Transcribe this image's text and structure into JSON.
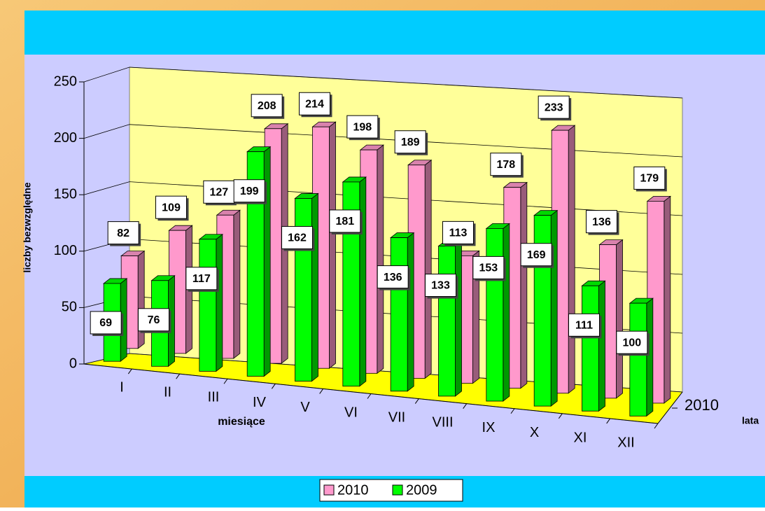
{
  "chart_data": {
    "type": "bar3d",
    "categories": [
      "I",
      "II",
      "III",
      "IV",
      "V",
      "VI",
      "VII",
      "VIII",
      "IX",
      "X",
      "XI",
      "XII"
    ],
    "series": [
      {
        "name": "2010",
        "color": "#ff99cc",
        "values": [
          82,
          109,
          127,
          208,
          214,
          198,
          189,
          113,
          178,
          233,
          136,
          179
        ]
      },
      {
        "name": "2009",
        "color": "#00ff00",
        "values": [
          69,
          76,
          117,
          199,
          162,
          181,
          136,
          133,
          153,
          169,
          111,
          100
        ]
      }
    ],
    "ylim": [
      0,
      250
    ],
    "yticks": [
      0,
      50,
      100,
      150,
      200,
      250
    ],
    "grid": true,
    "y_label": "liczby bezwzględne",
    "x_label": "miesiące",
    "z_label": "lata",
    "zticks": [
      "2010"
    ],
    "legend": "bottom"
  }
}
